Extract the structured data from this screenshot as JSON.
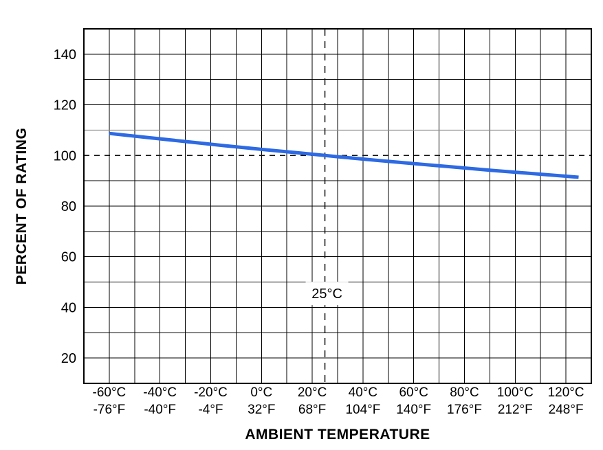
{
  "chart_data": {
    "type": "line",
    "title": "",
    "xlabel": "AMBIENT TEMPERATURE",
    "ylabel": "PERCENT OF RATING",
    "xlim": [
      -70,
      130
    ],
    "ylim": [
      10,
      150
    ],
    "x_grid_step": 10,
    "y_grid_step": 10,
    "grid": true,
    "legend": false,
    "y_ticks": [
      20,
      40,
      60,
      80,
      100,
      120,
      140
    ],
    "x_ticks": [
      {
        "value": -60,
        "celsius": "-60°C",
        "fahrenheit": "-76°F"
      },
      {
        "value": -40,
        "celsius": "-40°C",
        "fahrenheit": "-40°F"
      },
      {
        "value": -20,
        "celsius": "-20°C",
        "fahrenheit": "-4°F"
      },
      {
        "value": 0,
        "celsius": "0°C",
        "fahrenheit": "32°F"
      },
      {
        "value": 20,
        "celsius": "20°C",
        "fahrenheit": "68°F"
      },
      {
        "value": 40,
        "celsius": "40°C",
        "fahrenheit": "104°F"
      },
      {
        "value": 60,
        "celsius": "60°C",
        "fahrenheit": "140°F"
      },
      {
        "value": 80,
        "celsius": "80°C",
        "fahrenheit": "176°F"
      },
      {
        "value": 100,
        "celsius": "100°C",
        "fahrenheit": "212°F"
      },
      {
        "value": 120,
        "celsius": "120°C",
        "fahrenheit": "248°F"
      }
    ],
    "series": [
      {
        "name": "percent-of-rating-vs-ambient-temperature",
        "color": "#2d6ae3",
        "points": [
          [
            -60,
            108.7
          ],
          [
            -45,
            107.1
          ],
          [
            -30,
            105.5
          ],
          [
            -15,
            103.9
          ],
          [
            0,
            102.4
          ],
          [
            15,
            101.0
          ],
          [
            25,
            100.0
          ],
          [
            30,
            99.5
          ],
          [
            45,
            98.1
          ],
          [
            60,
            96.8
          ],
          [
            75,
            95.5
          ],
          [
            90,
            94.2
          ],
          [
            105,
            93.0
          ],
          [
            120,
            91.8
          ],
          [
            125,
            91.4
          ]
        ]
      }
    ],
    "reference_lines": [
      {
        "axis": "y",
        "value": 100,
        "style": "dashed",
        "color": "#111111",
        "name": "rated-100-percent-line"
      },
      {
        "axis": "y",
        "value": 110,
        "style": "solid",
        "color": "#8c8c8c",
        "name": "gray-110-percent-line"
      },
      {
        "axis": "x",
        "value": 25,
        "style": "dashed",
        "color": "#111111",
        "name": "ambient-25c-line"
      }
    ],
    "annotation": {
      "text": "25°C",
      "x": 25,
      "y": 45.5
    }
  }
}
